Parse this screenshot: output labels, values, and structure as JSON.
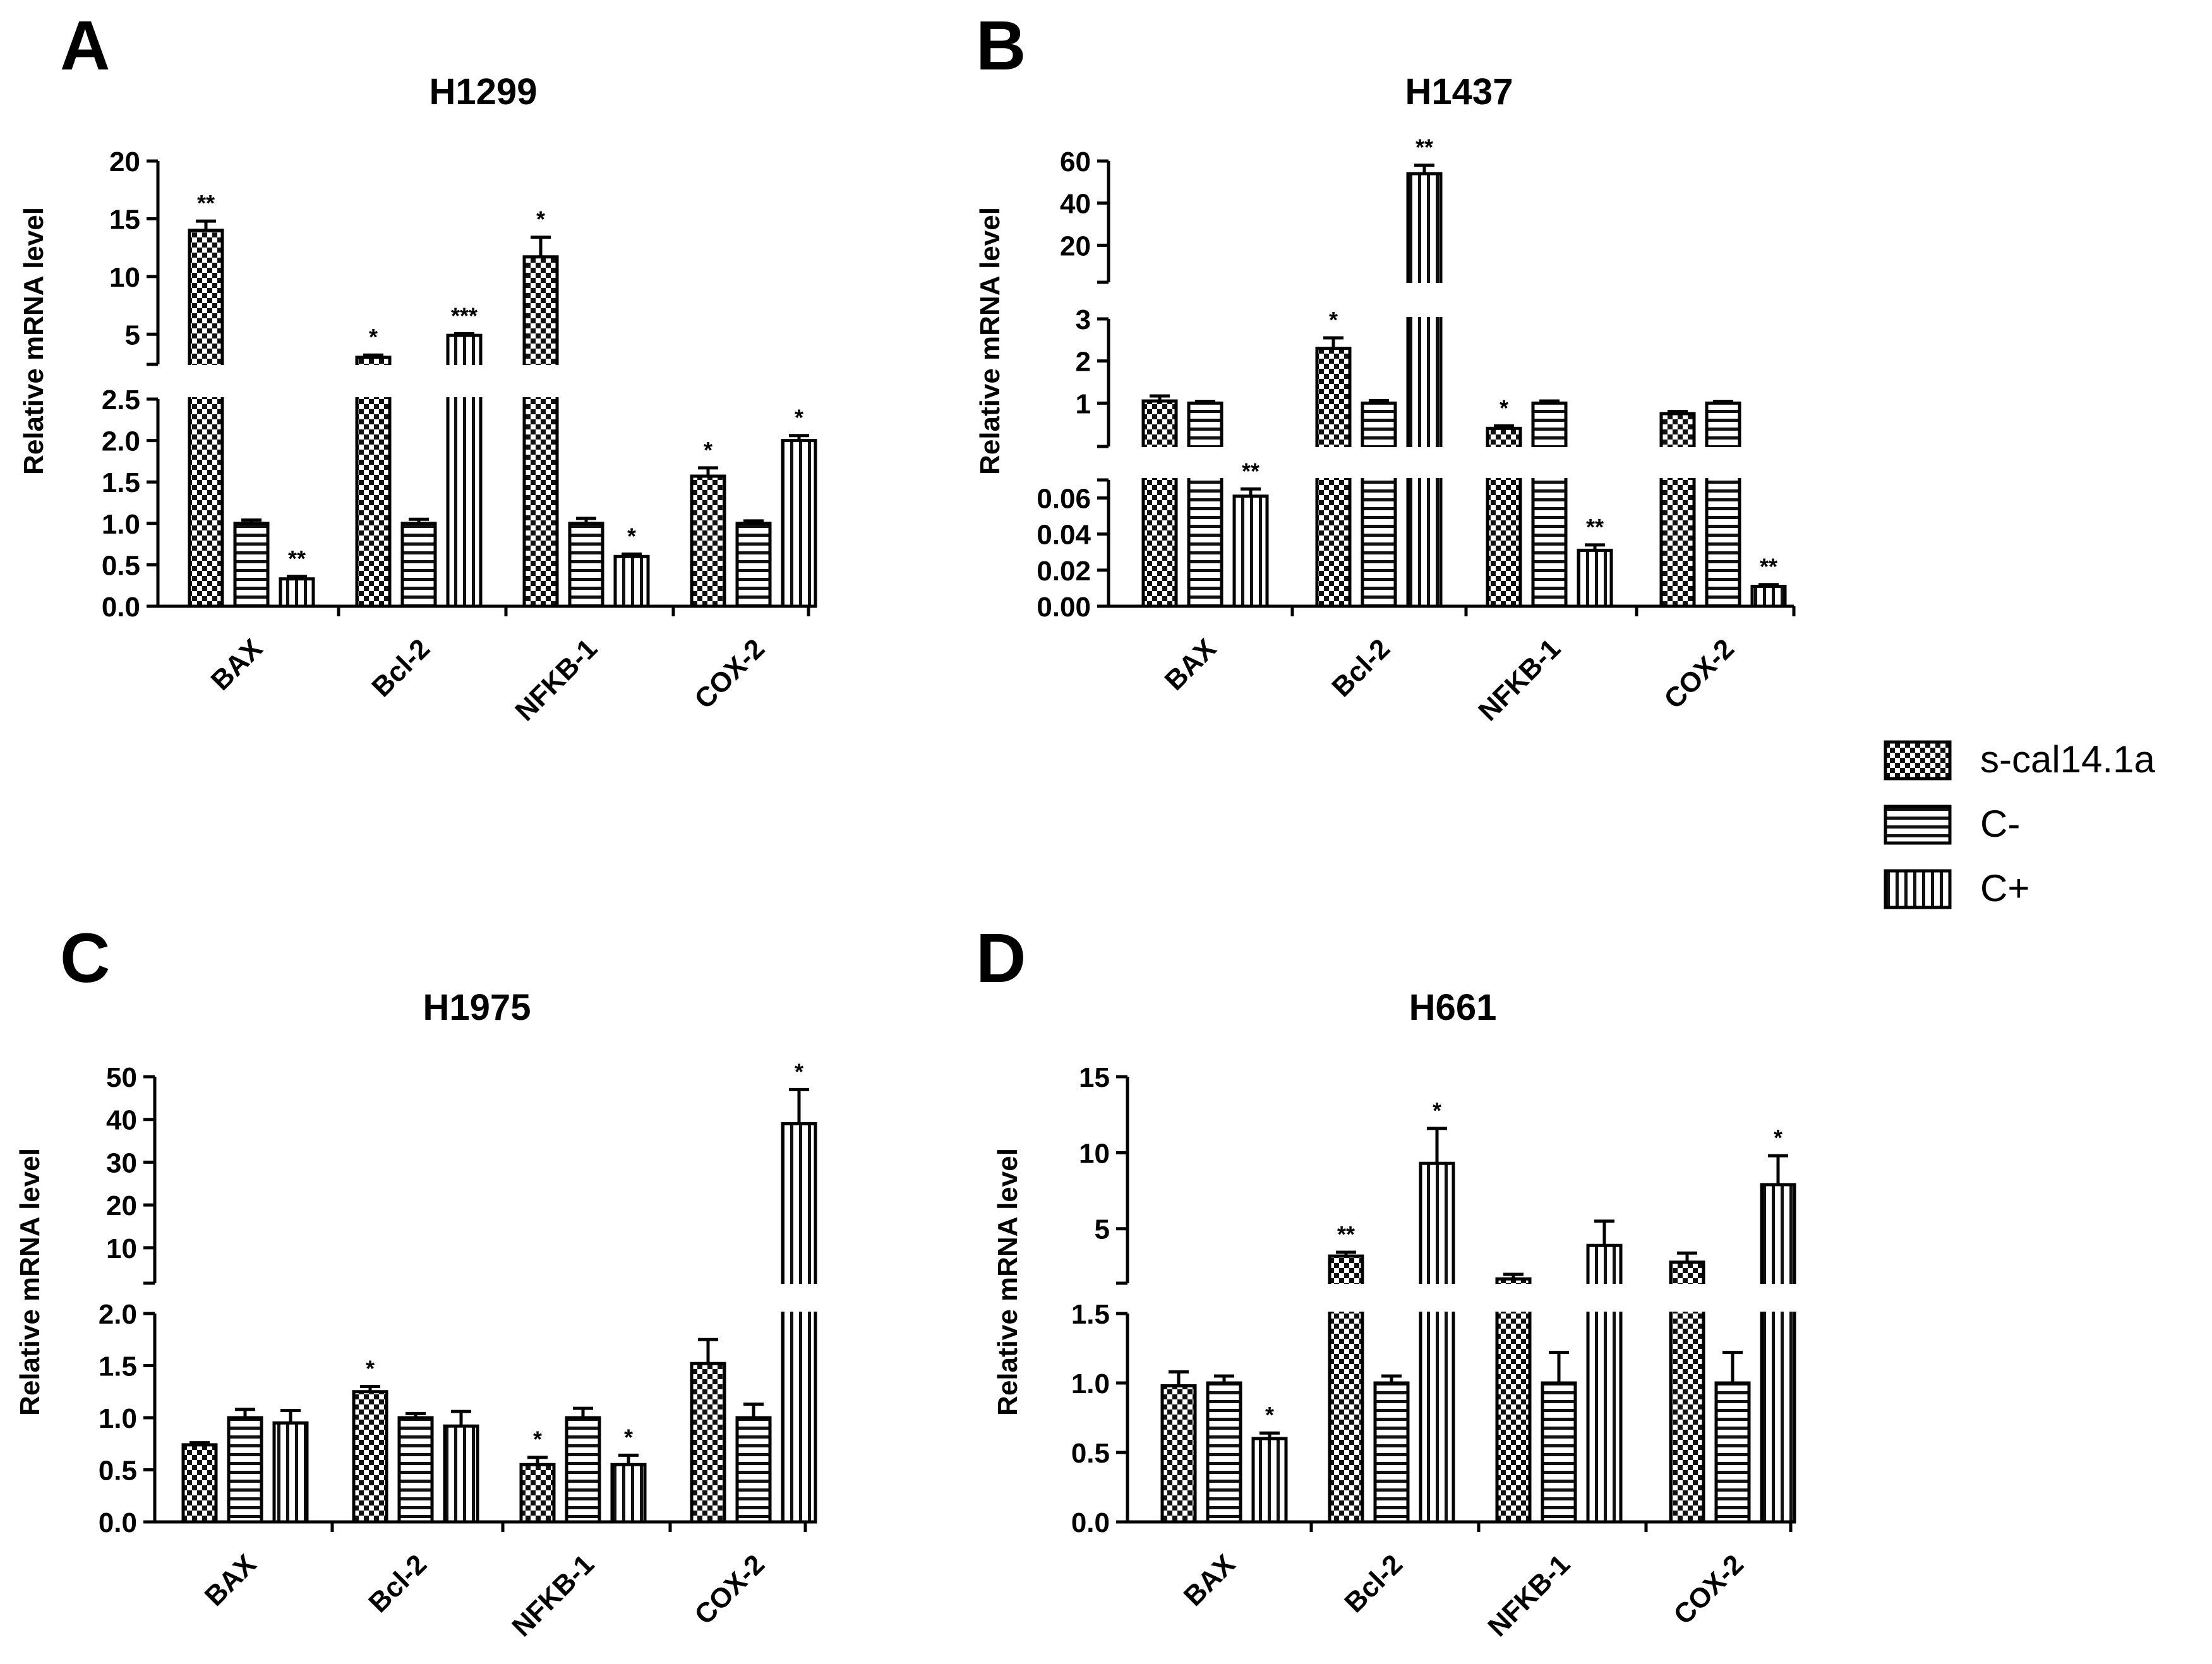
{
  "legend": [
    {
      "label": "s-cal14.1a",
      "pattern": "checker"
    },
    {
      "label": "C-",
      "pattern": "hlines"
    },
    {
      "label": "C+",
      "pattern": "vlines"
    }
  ],
  "chart_data": [
    {
      "panel": "A",
      "type": "bar",
      "title": "H1299",
      "ylabel": "Relative mRNA level",
      "categories": [
        "BAX",
        "Bcl-2",
        "NFKB-1",
        "COX-2"
      ],
      "y_break": {
        "lower": [
          0,
          2.5
        ],
        "upper": [
          2.5,
          20
        ]
      },
      "y_ticks_lower": [
        "0.0",
        "0.5",
        "1.0",
        "1.5",
        "2.0",
        "2.5"
      ],
      "y_ticks_upper": [
        "5",
        "10",
        "15",
        "20"
      ],
      "series": [
        {
          "name": "s-cal14.1a",
          "values": [
            14.0,
            3.0,
            11.7,
            1.57
          ],
          "errors": [
            0.8,
            0.2,
            1.7,
            0.1
          ],
          "sig": [
            "**",
            "*",
            "*",
            "*"
          ]
        },
        {
          "name": "C-",
          "values": [
            1.0,
            1.0,
            1.0,
            1.0
          ],
          "errors": [
            0.04,
            0.05,
            0.06,
            0.03
          ],
          "sig": [
            "",
            "",
            "",
            ""
          ]
        },
        {
          "name": "C+",
          "values": [
            0.33,
            4.9,
            0.6,
            2.0
          ],
          "errors": [
            0.03,
            0.15,
            0.03,
            0.06
          ],
          "sig": [
            "**",
            "***",
            "*",
            "*"
          ]
        }
      ]
    },
    {
      "panel": "B",
      "type": "bar",
      "title": "H1437",
      "ylabel": "Relative mRNA level",
      "categories": [
        "BAX",
        "Bcl-2",
        "NFKB-1",
        "COX-2"
      ],
      "y_break": {
        "lower": [
          0,
          0.07
        ],
        "middle": [
          0,
          3
        ],
        "upper": [
          3,
          60
        ]
      },
      "y_ticks_lower": [
        "0.00",
        "0.02",
        "0.04",
        "0.06"
      ],
      "y_ticks_middle": [
        "1",
        "2",
        "3"
      ],
      "y_ticks_upper": [
        "20",
        "40",
        "60"
      ],
      "series": [
        {
          "name": "s-cal14.1a",
          "values": [
            1.05,
            2.3,
            0.4,
            0.75
          ],
          "errors": [
            0.12,
            0.25,
            0.06,
            0.05
          ],
          "sig": [
            "",
            "*",
            "*",
            ""
          ]
        },
        {
          "name": "C-",
          "values": [
            1.0,
            1.0,
            1.0,
            1.0
          ],
          "errors": [
            0.04,
            0.06,
            0.05,
            0.04
          ],
          "sig": [
            "",
            "",
            "",
            ""
          ]
        },
        {
          "name": "C+",
          "values": [
            0.061,
            54,
            0.031,
            0.011
          ],
          "errors": [
            0.004,
            4,
            0.003,
            0.001
          ],
          "sig": [
            "**",
            "**",
            "**",
            "**"
          ]
        }
      ]
    },
    {
      "panel": "C",
      "type": "bar",
      "title": "H1975",
      "ylabel": "Relative mRNA level",
      "categories": [
        "BAX",
        "Bcl-2",
        "NFKB-1",
        "COX-2"
      ],
      "y_break": {
        "lower": [
          0,
          2.0
        ],
        "upper": [
          2.0,
          50
        ]
      },
      "y_ticks_lower": [
        "0.0",
        "0.5",
        "1.0",
        "1.5",
        "2.0"
      ],
      "y_ticks_upper": [
        "10",
        "20",
        "30",
        "40",
        "50"
      ],
      "series": [
        {
          "name": "s-cal14.1a",
          "values": [
            0.74,
            1.25,
            0.55,
            1.52
          ],
          "errors": [
            0.02,
            0.05,
            0.07,
            0.23
          ],
          "sig": [
            "",
            "*",
            "*",
            ""
          ]
        },
        {
          "name": "C-",
          "values": [
            1.0,
            1.0,
            1.0,
            1.0
          ],
          "errors": [
            0.08,
            0.04,
            0.09,
            0.13
          ],
          "sig": [
            "",
            "",
            "",
            ""
          ]
        },
        {
          "name": "C+",
          "values": [
            0.95,
            0.92,
            0.55,
            39
          ],
          "errors": [
            0.12,
            0.14,
            0.09,
            8
          ],
          "sig": [
            "",
            "",
            "*",
            "*"
          ]
        }
      ]
    },
    {
      "panel": "D",
      "type": "bar",
      "title": "H661",
      "ylabel": "Relative mRNA level",
      "categories": [
        "BAX",
        "Bcl-2",
        "NFKB-1",
        "COX-2"
      ],
      "y_break": {
        "lower": [
          0,
          1.5
        ],
        "upper": [
          1.5,
          15
        ]
      },
      "y_ticks_lower": [
        "0.0",
        "0.5",
        "1.0",
        "1.5"
      ],
      "y_ticks_upper": [
        "5",
        "10",
        "15"
      ],
      "series": [
        {
          "name": "s-cal14.1a",
          "values": [
            0.98,
            3.2,
            1.7,
            2.8
          ],
          "errors": [
            0.1,
            0.25,
            0.3,
            0.6
          ],
          "sig": [
            "",
            "**",
            "",
            ""
          ]
        },
        {
          "name": "C-",
          "values": [
            1.0,
            1.0,
            1.0,
            1.0
          ],
          "errors": [
            0.05,
            0.05,
            0.22,
            0.22
          ],
          "sig": [
            "",
            "",
            "",
            ""
          ]
        },
        {
          "name": "C+",
          "values": [
            0.6,
            9.3,
            3.9,
            7.9
          ],
          "errors": [
            0.04,
            2.3,
            1.6,
            1.9
          ],
          "sig": [
            "*",
            "*",
            "",
            "*"
          ]
        }
      ]
    }
  ]
}
